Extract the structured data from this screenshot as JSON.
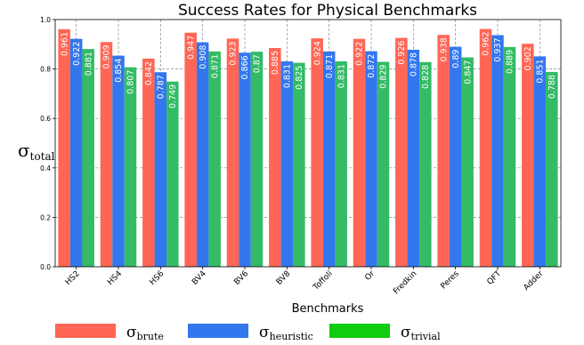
{
  "chart_data": {
    "type": "bar",
    "title": "Success Rates for Physical Benchmarks",
    "xlabel": "Benchmarks",
    "ylabel": {
      "base": "σ",
      "sub": "total"
    },
    "ylim": [
      0.0,
      1.0
    ],
    "yticks": [
      "0.0",
      "0.2",
      "0.4",
      "0.6",
      "0.8",
      "1.0"
    ],
    "grid": true,
    "legend_position": "bottom",
    "categories": [
      "HS2",
      "HS4",
      "HS6",
      "BV4",
      "BV6",
      "BV8",
      "Toffoli",
      "Or",
      "Fredkin",
      "Peres",
      "QFT",
      "Adder"
    ],
    "series": [
      {
        "name": "brute",
        "color": "#ff6655",
        "values": [
          0.961,
          0.909,
          0.842,
          0.947,
          0.923,
          0.885,
          0.924,
          0.922,
          0.926,
          0.938,
          0.962,
          0.902
        ],
        "labels": [
          "0.961",
          "0.909",
          "0.842",
          "0.947",
          "0.923",
          "0.885",
          "0.924",
          "0.922",
          "0.926",
          "0.938",
          "0.962",
          "0.902"
        ]
      },
      {
        "name": "heuristic",
        "color": "#3377ee",
        "values": [
          0.922,
          0.854,
          0.787,
          0.908,
          0.866,
          0.831,
          0.871,
          0.872,
          0.878,
          0.89,
          0.937,
          0.851
        ],
        "labels": [
          "0.922",
          "0.854",
          "0.787",
          "0.908",
          "0.866",
          "0.831",
          "0.871",
          "0.872",
          "0.878",
          "0.89",
          "0.937",
          "0.851"
        ]
      },
      {
        "name": "trivial",
        "color": "#33bb66",
        "values": [
          0.881,
          0.807,
          0.749,
          0.871,
          0.87,
          0.825,
          0.831,
          0.829,
          0.828,
          0.847,
          0.889,
          0.788
        ],
        "labels": [
          "0.881",
          "0.807",
          "0.749",
          "0.871",
          "0.87",
          "0.825",
          "0.831",
          "0.829",
          "0.828",
          "0.847",
          "0.889",
          "0.788"
        ]
      }
    ],
    "legend_colors": [
      "#ff6655",
      "#3377ee",
      "#11cc11"
    ]
  }
}
